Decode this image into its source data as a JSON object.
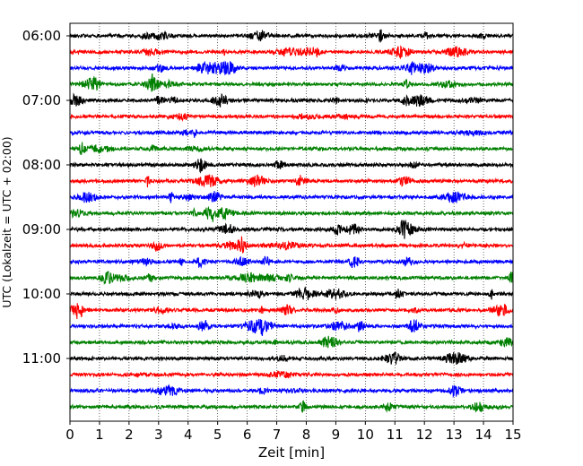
{
  "chart_data": {
    "type": "line",
    "title": "",
    "xlabel": "Zeit  [min]",
    "ylabel": "UTC (Lokalzeit = UTC + 02:00)",
    "xlim": [
      0,
      15
    ],
    "x_ticks": [
      "0",
      "1",
      "2",
      "3",
      "4",
      "5",
      "6",
      "7",
      "8",
      "9",
      "10",
      "11",
      "12",
      "13",
      "14",
      "15"
    ],
    "y_ticks": [
      "06:00",
      "07:00",
      "08:00",
      "09:00",
      "10:00",
      "11:00"
    ],
    "trace_interval_min": 15,
    "grid": "vertical-dotted",
    "colors": [
      "#000000",
      "#ff0000",
      "#0000ff",
      "#008000"
    ],
    "series": [
      {
        "start": "06:00",
        "color": "#000000"
      },
      {
        "start": "06:15",
        "color": "#ff0000"
      },
      {
        "start": "06:30",
        "color": "#0000ff"
      },
      {
        "start": "06:45",
        "color": "#008000"
      },
      {
        "start": "07:00",
        "color": "#000000"
      },
      {
        "start": "07:15",
        "color": "#ff0000"
      },
      {
        "start": "07:30",
        "color": "#0000ff"
      },
      {
        "start": "07:45",
        "color": "#008000"
      },
      {
        "start": "08:00",
        "color": "#000000"
      },
      {
        "start": "08:15",
        "color": "#ff0000"
      },
      {
        "start": "08:30",
        "color": "#0000ff"
      },
      {
        "start": "08:45",
        "color": "#008000"
      },
      {
        "start": "09:00",
        "color": "#000000"
      },
      {
        "start": "09:15",
        "color": "#ff0000"
      },
      {
        "start": "09:30",
        "color": "#0000ff"
      },
      {
        "start": "09:45",
        "color": "#008000"
      },
      {
        "start": "10:00",
        "color": "#000000"
      },
      {
        "start": "10:15",
        "color": "#ff0000"
      },
      {
        "start": "10:30",
        "color": "#0000ff"
      },
      {
        "start": "10:45",
        "color": "#008000"
      },
      {
        "start": "11:00",
        "color": "#000000"
      },
      {
        "start": "11:15",
        "color": "#ff0000"
      },
      {
        "start": "11:30",
        "color": "#0000ff"
      },
      {
        "start": "11:45",
        "color": "#008000"
      }
    ]
  }
}
